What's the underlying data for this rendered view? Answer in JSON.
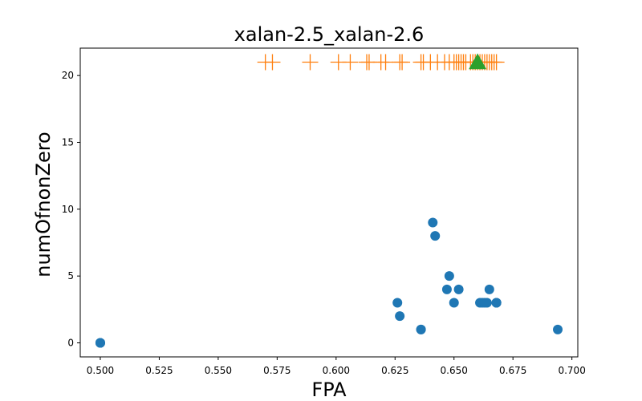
{
  "chart_data": {
    "type": "scatter",
    "title": "xalan-2.5_xalan-2.6",
    "xlabel": "FPA",
    "ylabel": "numOfnonZero",
    "xlim": [
      0.4915,
      0.7025
    ],
    "ylim": [
      -1.05,
      22.05
    ],
    "xticks": [
      "0.500",
      "0.525",
      "0.550",
      "0.575",
      "0.600",
      "0.625",
      "0.650",
      "0.675",
      "0.700"
    ],
    "yticks": [
      "0",
      "5",
      "10",
      "15",
      "20"
    ],
    "grid": false,
    "colors": {
      "circles": "#1f77b4",
      "plus": "#ff7f0e",
      "triangle": "#2ca02c"
    },
    "series": [
      {
        "marker": "circle",
        "points": [
          [
            0.5,
            0
          ],
          [
            0.5,
            0
          ],
          [
            0.5,
            0
          ],
          [
            0.626,
            3
          ],
          [
            0.627,
            2
          ],
          [
            0.636,
            1
          ],
          [
            0.636,
            1
          ],
          [
            0.641,
            9
          ],
          [
            0.642,
            8
          ],
          [
            0.647,
            4
          ],
          [
            0.648,
            5
          ],
          [
            0.65,
            3
          ],
          [
            0.652,
            4
          ],
          [
            0.661,
            3
          ],
          [
            0.662,
            3
          ],
          [
            0.663,
            3
          ],
          [
            0.664,
            3
          ],
          [
            0.665,
            4
          ],
          [
            0.668,
            3
          ],
          [
            0.668,
            3
          ],
          [
            0.668,
            3
          ],
          [
            0.694,
            1
          ]
        ]
      },
      {
        "marker": "plus",
        "y": 21,
        "x": [
          0.57,
          0.573,
          0.589,
          0.601,
          0.606,
          0.613,
          0.614,
          0.619,
          0.621,
          0.627,
          0.628,
          0.636,
          0.637,
          0.64,
          0.643,
          0.646,
          0.648,
          0.65,
          0.651,
          0.652,
          0.653,
          0.654,
          0.655,
          0.657,
          0.658,
          0.659,
          0.66,
          0.661,
          0.662,
          0.663,
          0.664,
          0.665,
          0.666,
          0.667,
          0.668
        ]
      },
      {
        "marker": "triangle",
        "points": [
          [
            0.66,
            21
          ]
        ]
      }
    ]
  }
}
